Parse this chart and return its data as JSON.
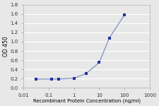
{
  "x": [
    0.031,
    0.125,
    0.25,
    1.0,
    3.0,
    10.0,
    25.0,
    100.0
  ],
  "y": [
    0.19,
    0.19,
    0.19,
    0.21,
    0.31,
    0.55,
    1.08,
    1.58
  ],
  "line_color": "#8899cc",
  "marker_color": "#223399",
  "marker_style": "s",
  "marker_size": 2.5,
  "line_width": 1.0,
  "xlabel": "Recombinant Protein Concentration (ng/ml)",
  "ylabel": "OD 450",
  "xlim_log": [
    0.01,
    1000
  ],
  "ylim": [
    0,
    1.8
  ],
  "yticks": [
    0,
    0.2,
    0.4,
    0.6,
    0.8,
    1.0,
    1.2,
    1.4,
    1.6,
    1.8
  ],
  "xticks": [
    0.01,
    0.1,
    1,
    10,
    100,
    1000
  ],
  "xtick_labels": [
    "0.01",
    "0.1",
    "1",
    "10",
    "100",
    "1000"
  ],
  "background_color": "#e8e8e8",
  "plot_bg_color": "#e8e8e8",
  "grid_color": "#ffffff",
  "xlabel_fontsize": 5.0,
  "ylabel_fontsize": 5.5,
  "tick_fontsize": 5.0
}
